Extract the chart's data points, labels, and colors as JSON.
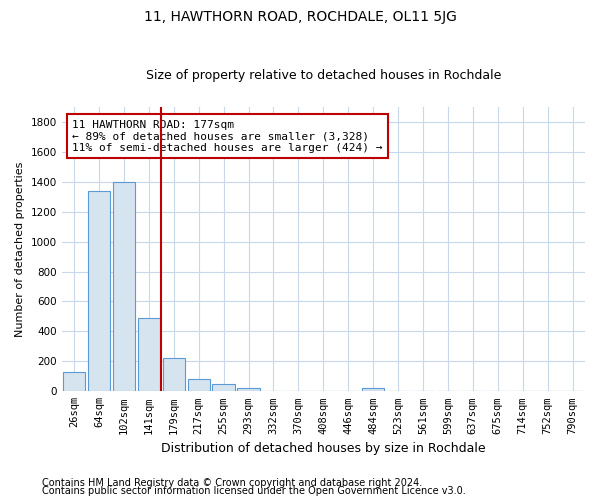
{
  "title": "11, HAWTHORN ROAD, ROCHDALE, OL11 5JG",
  "subtitle": "Size of property relative to detached houses in Rochdale",
  "xlabel": "Distribution of detached houses by size in Rochdale",
  "ylabel": "Number of detached properties",
  "footnote1": "Contains HM Land Registry data © Crown copyright and database right 2024.",
  "footnote2": "Contains public sector information licensed under the Open Government Licence v3.0.",
  "categories": [
    "26sqm",
    "64sqm",
    "102sqm",
    "141sqm",
    "179sqm",
    "217sqm",
    "255sqm",
    "293sqm",
    "332sqm",
    "370sqm",
    "408sqm",
    "446sqm",
    "484sqm",
    "523sqm",
    "561sqm",
    "599sqm",
    "637sqm",
    "675sqm",
    "714sqm",
    "752sqm",
    "790sqm"
  ],
  "values": [
    130,
    1340,
    1400,
    490,
    225,
    80,
    50,
    25,
    0,
    0,
    0,
    0,
    20,
    0,
    0,
    0,
    0,
    0,
    0,
    0,
    0
  ],
  "bar_color": "#d6e4f0",
  "bar_edge_color": "#5b9bd5",
  "bar_linewidth": 0.8,
  "vline_pos": 3.5,
  "vline_color": "#c00000",
  "annotation_text": "11 HAWTHORN ROAD: 177sqm\n← 89% of detached houses are smaller (3,328)\n11% of semi-detached houses are larger (424) →",
  "annotation_box_color": "#c00000",
  "ylim": [
    0,
    1900
  ],
  "yticks": [
    0,
    200,
    400,
    600,
    800,
    1000,
    1200,
    1400,
    1600,
    1800
  ],
  "background_color": "#ffffff",
  "grid_color": "#c8d8e8",
  "title_fontsize": 10,
  "subtitle_fontsize": 9,
  "xlabel_fontsize": 9,
  "ylabel_fontsize": 8,
  "tick_fontsize": 7.5,
  "annotation_fontsize": 8,
  "footnote_fontsize": 7
}
